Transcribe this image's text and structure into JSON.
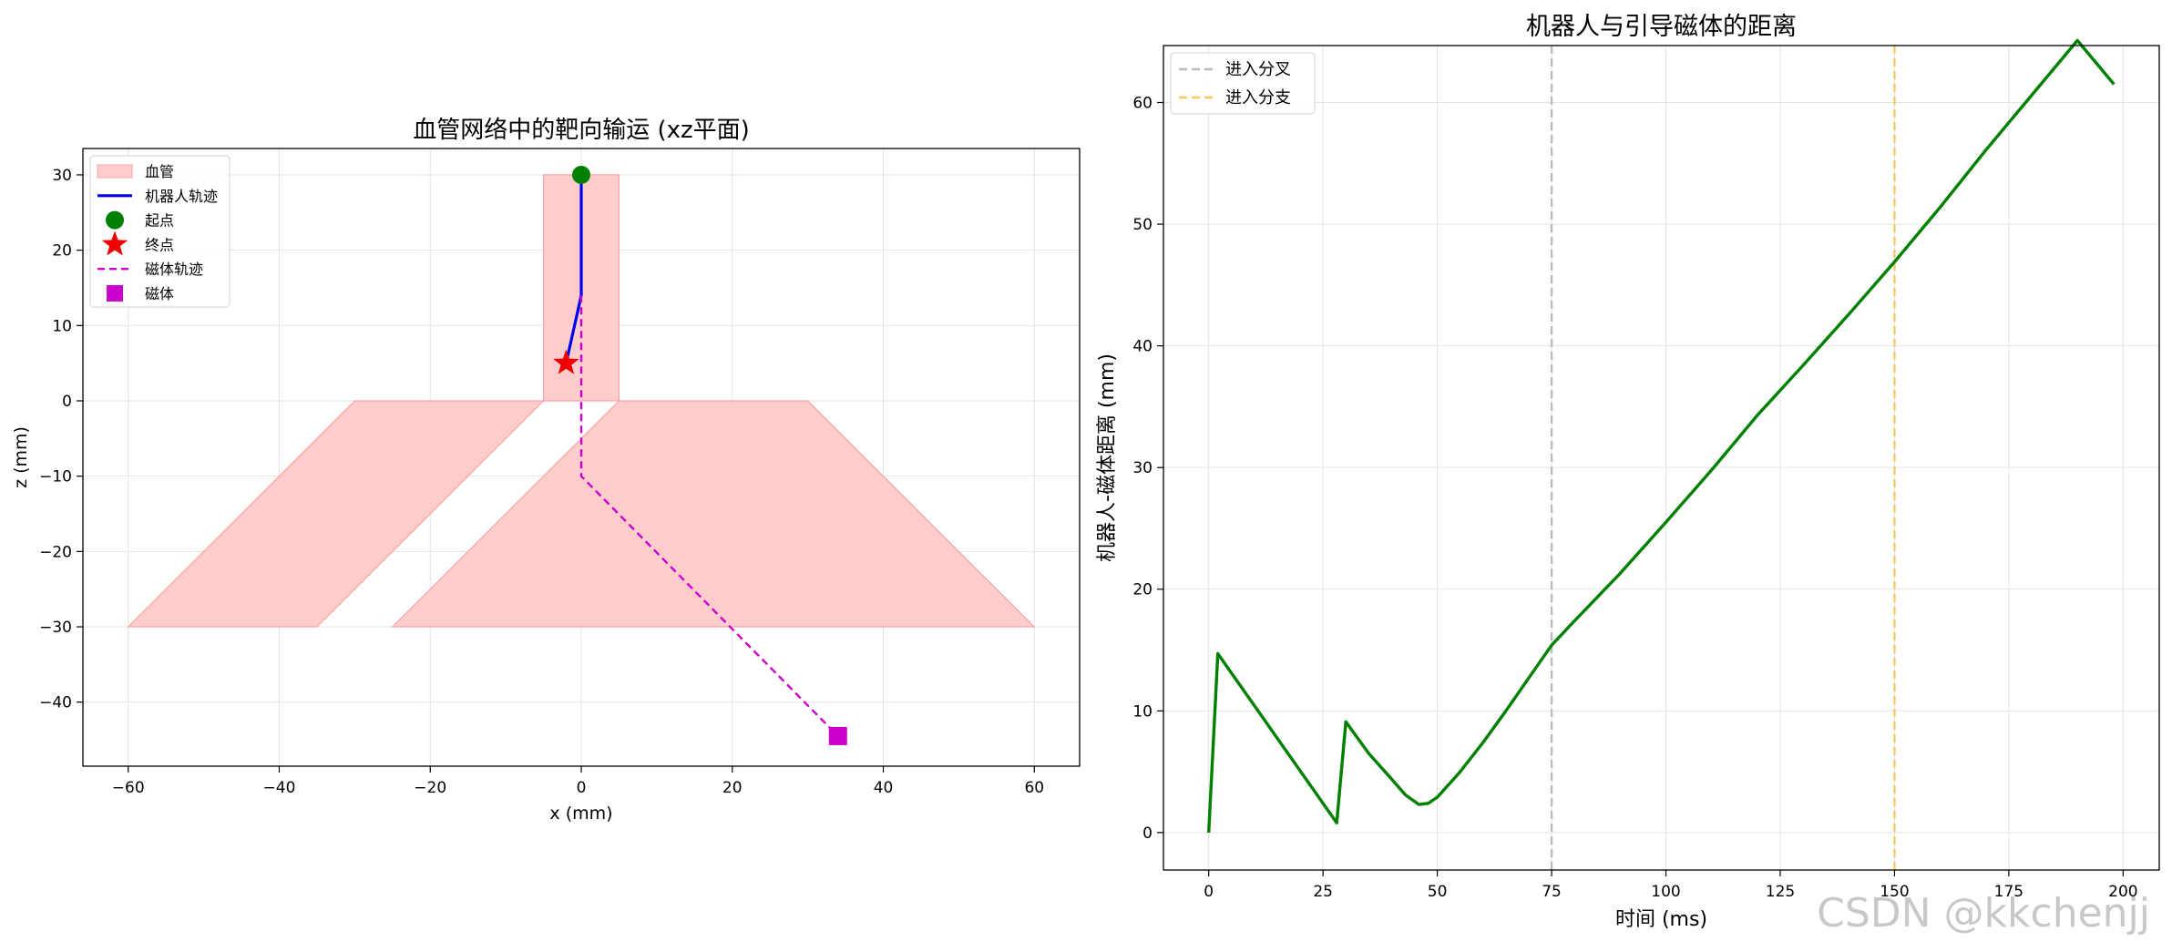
{
  "watermark": "CSDN @kkchenjj",
  "chart_data": [
    {
      "type": "line",
      "title": "血管网络中的靶向输运 (xz平面)",
      "xlabel": "x (mm)",
      "ylabel": "z (mm)",
      "xlim": [
        -66,
        66
      ],
      "ylim": [
        -48.5,
        33.5
      ],
      "xticks": [
        -60,
        -40,
        -20,
        0,
        20,
        40,
        60
      ],
      "yticks": [
        -40,
        -30,
        -20,
        -10,
        0,
        10,
        20,
        30
      ],
      "xtick_labels": [
        "−60",
        "−40",
        "−20",
        "0",
        "20",
        "40",
        "60"
      ],
      "ytick_labels": [
        "−40",
        "−30",
        "−20",
        "−10",
        "0",
        "10",
        "20",
        "30"
      ],
      "grid": true,
      "legend_position": "top-left",
      "colors": {
        "vessel_fill": "#ffcccc",
        "vessel_edge": "#f4a6a6",
        "robot": "#0000ee",
        "start": "#008000",
        "end": "#ee0000",
        "magnet": "#cc00cc"
      },
      "vessels": [
        {
          "name": "血管",
          "points": [
            [
              -5,
              0
            ],
            [
              5,
              0
            ],
            [
              5,
              30
            ],
            [
              -5,
              30
            ]
          ]
        },
        {
          "name": "血管",
          "points": [
            [
              -5,
              0
            ],
            [
              -30,
              0
            ],
            [
              -60,
              -30
            ],
            [
              -35,
              -30
            ]
          ]
        },
        {
          "name": "血管",
          "points": [
            [
              5,
              0
            ],
            [
              30,
              0
            ],
            [
              60,
              -30
            ],
            [
              -25,
              -30
            ]
          ]
        }
      ],
      "series": [
        {
          "name": "机器人轨迹",
          "style": "solid",
          "points": [
            [
              0,
              30
            ],
            [
              0,
              14
            ],
            [
              -2,
              5
            ]
          ]
        },
        {
          "name": "磁体轨迹",
          "style": "dashed",
          "points": [
            [
              0,
              14
            ],
            [
              0,
              -10
            ],
            [
              34,
              -44.5
            ]
          ]
        }
      ],
      "markers": [
        {
          "name": "起点",
          "shape": "circle",
          "x": 0,
          "y": 30
        },
        {
          "name": "终点",
          "shape": "star",
          "x": -2,
          "y": 5
        },
        {
          "name": "磁体",
          "shape": "square",
          "x": 34,
          "y": -44.5
        }
      ],
      "legend": [
        {
          "label": "血管",
          "kind": "patch"
        },
        {
          "label": "机器人轨迹",
          "kind": "line"
        },
        {
          "label": "起点",
          "kind": "circle"
        },
        {
          "label": "终点",
          "kind": "star"
        },
        {
          "label": "磁体轨迹",
          "kind": "dashed"
        },
        {
          "label": "磁体",
          "kind": "square"
        }
      ]
    },
    {
      "type": "line",
      "title": "机器人与引导磁体的距离",
      "xlabel": "时间 (ms)",
      "ylabel": "机器人-磁体距离 (mm)",
      "xlim": [
        -9.9,
        207.9
      ],
      "ylim": [
        -3.08,
        64.68
      ],
      "xticks": [
        0,
        25,
        50,
        75,
        100,
        125,
        150,
        175,
        200
      ],
      "yticks": [
        0,
        10,
        20,
        30,
        40,
        50,
        60
      ],
      "grid": true,
      "legend_position": "top-left",
      "colors": {
        "line": "#008000",
        "branch_entry": "#bbbbbb",
        "sub_branch": "#f5c866"
      },
      "vlines": [
        {
          "name": "进入分叉",
          "x": 75,
          "color": "#bbbbbb"
        },
        {
          "name": "进入分支",
          "x": 150,
          "color": "#f5c866"
        }
      ],
      "series": [
        {
          "name": "",
          "points": [
            [
              0,
              0
            ],
            [
              2,
              14.7
            ],
            [
              28,
              0.8
            ],
            [
              30,
              9.1
            ],
            [
              35,
              6.5
            ],
            [
              40,
              4.4
            ],
            [
              43,
              3.1
            ],
            [
              46,
              2.3
            ],
            [
              48,
              2.4
            ],
            [
              50,
              2.9
            ],
            [
              55,
              5
            ],
            [
              60,
              7.4
            ],
            [
              65,
              10
            ],
            [
              70,
              12.7
            ],
            [
              75,
              15.4
            ],
            [
              80,
              17.4
            ],
            [
              90,
              21.3
            ],
            [
              100,
              25.5
            ],
            [
              110,
              29.8
            ],
            [
              120,
              34.3
            ],
            [
              130,
              38.4
            ],
            [
              140,
              42.6
            ],
            [
              150,
              46.9
            ],
            [
              160,
              51.4
            ],
            [
              170,
              56.1
            ],
            [
              180,
              60.6
            ],
            [
              190,
              65.1
            ],
            [
              198,
              61.5
            ]
          ]
        }
      ]
    }
  ]
}
